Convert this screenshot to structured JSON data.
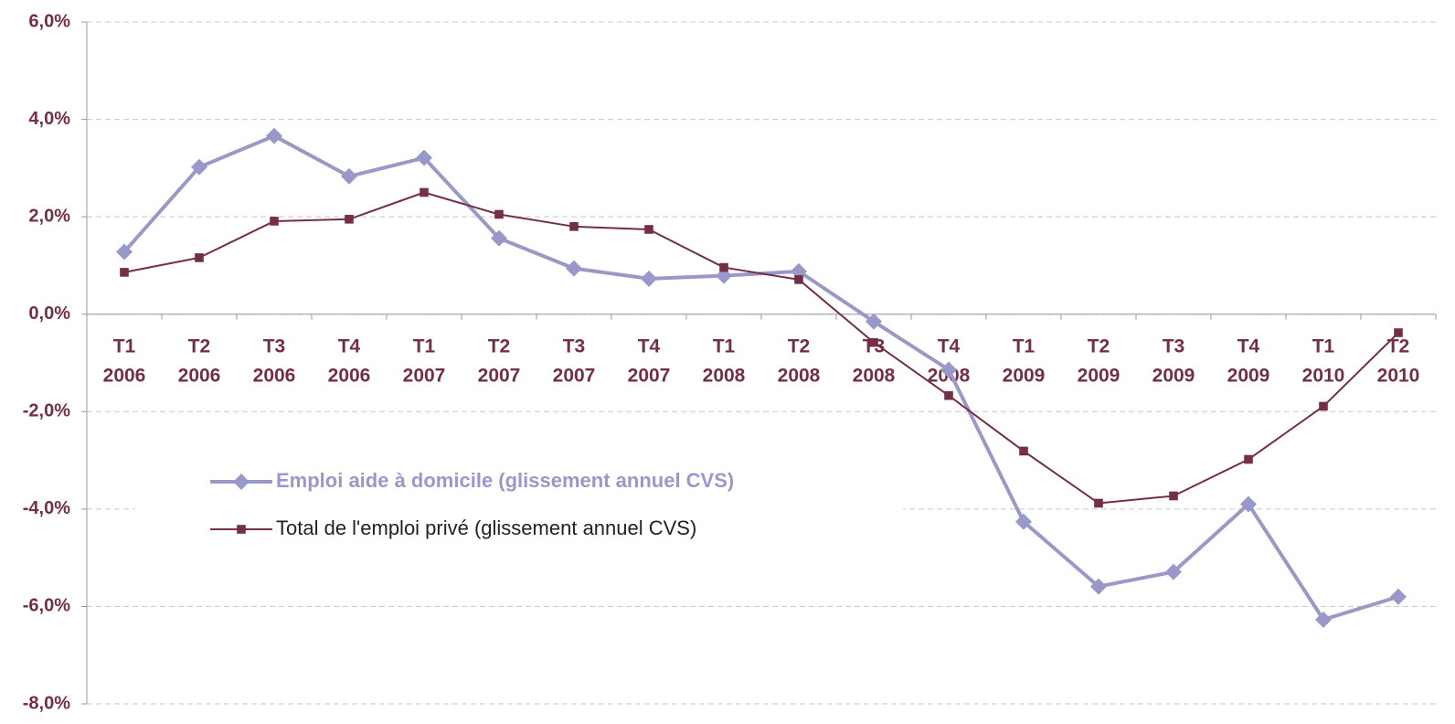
{
  "chart_data": {
    "type": "line",
    "categories": [
      "T1 2006",
      "T2 2006",
      "T3 2006",
      "T4 2006",
      "T1 2007",
      "T2 2007",
      "T3 2007",
      "T4 2007",
      "T1 2008",
      "T2 2008",
      "T3 2008",
      "T4 2008",
      "T1 2009",
      "T2 2009",
      "T3 2009",
      "T4 2009",
      "T1 2010",
      "T2 2010"
    ],
    "series": [
      {
        "name": "Emploi aide à domicile (glissement annuel CVS)",
        "color": "#9999c9",
        "marker": "diamond",
        "values": [
          1.28,
          3.02,
          3.66,
          2.83,
          3.21,
          1.56,
          0.94,
          0.73,
          0.79,
          0.88,
          -0.15,
          -1.14,
          -4.26,
          -5.59,
          -5.29,
          -3.9,
          -6.27,
          -5.8
        ]
      },
      {
        "name": "Total de l'emploi privé (glissement annuel CVS)",
        "color": "#722f45",
        "marker": "square",
        "values": [
          0.86,
          1.16,
          1.91,
          1.95,
          2.5,
          2.05,
          1.8,
          1.74,
          0.96,
          0.71,
          -0.58,
          -1.67,
          -2.81,
          -3.88,
          -3.73,
          -2.98,
          -1.89,
          -0.38
        ]
      }
    ],
    "ylim": [
      -8,
      6
    ],
    "yticks": [
      {
        "value": -8,
        "label": "-8,0%"
      },
      {
        "value": -6,
        "label": "-6,0%"
      },
      {
        "value": -4,
        "label": "-4,0%"
      },
      {
        "value": -2,
        "label": "-2,0%"
      },
      {
        "value": 0,
        "label": "0,0%"
      },
      {
        "value": 2,
        "label": "2,0%"
      },
      {
        "value": 4,
        "label": "4,0%"
      },
      {
        "value": 6,
        "label": "6,0%"
      }
    ],
    "grid": true
  }
}
